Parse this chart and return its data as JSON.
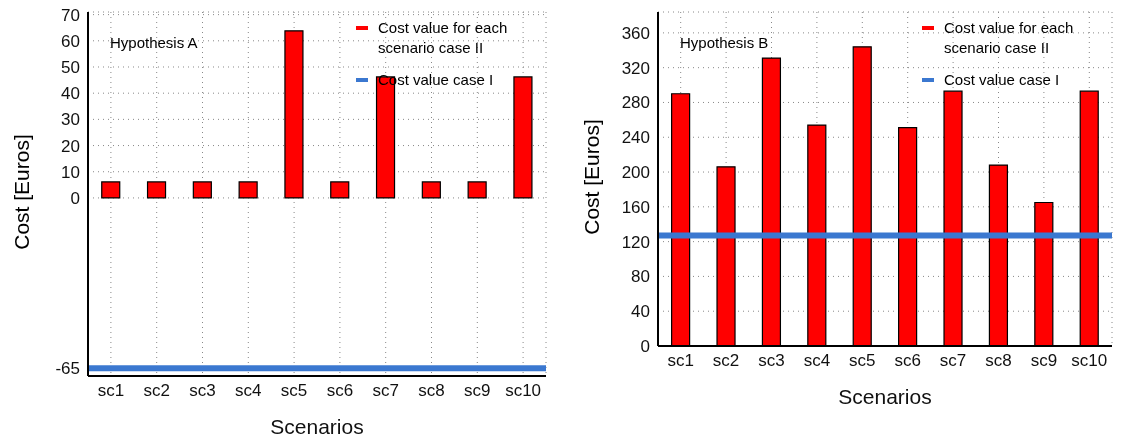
{
  "chart_data": [
    {
      "type": "bar",
      "annotations": [
        "Hypothesis A"
      ],
      "xlabel": "Scenarios",
      "ylabel": "Cost [Euros]",
      "categories": [
        "sc1",
        "sc2",
        "sc3",
        "sc4",
        "sc5",
        "sc6",
        "sc7",
        "sc8",
        "sc9",
        "sc10"
      ],
      "series": [
        {
          "name": "Cost value for each scenario case II",
          "color": "#ff0000",
          "values": [
            6.1,
            6.1,
            6.1,
            6.1,
            63.8,
            6.1,
            46.2,
            6.1,
            6.1,
            46.2
          ]
        }
      ],
      "ref_lines": [
        {
          "axis": "y",
          "value": -65,
          "label": "Cost value case I",
          "color": "#3b78d0"
        }
      ],
      "ylim": [
        -68,
        71
      ],
      "yticks": [
        -65,
        0,
        10,
        20,
        30,
        40,
        50,
        60,
        70
      ],
      "grid": true,
      "legend": "top right"
    },
    {
      "type": "bar",
      "annotations": [
        "Hypothesis B"
      ],
      "xlabel": "Scenarios",
      "ylabel": "Cost [Euros]",
      "categories": [
        "sc1",
        "sc2",
        "sc3",
        "sc4",
        "sc5",
        "sc6",
        "sc7",
        "sc8",
        "sc9",
        "sc10"
      ],
      "series": [
        {
          "name": "Cost value for each scenario case II",
          "color": "#ff0000",
          "values": [
            290,
            206,
            331,
            254,
            344,
            251,
            293,
            208,
            165,
            293
          ]
        }
      ],
      "ref_lines": [
        {
          "axis": "y",
          "value": 127,
          "label": "Cost value case I",
          "color": "#3b78d0"
        }
      ],
      "ylim": [
        0,
        384
      ],
      "yticks": [
        0,
        40,
        80,
        120,
        160,
        200,
        240,
        280,
        320,
        360
      ],
      "grid": true,
      "legend": "top right"
    }
  ]
}
